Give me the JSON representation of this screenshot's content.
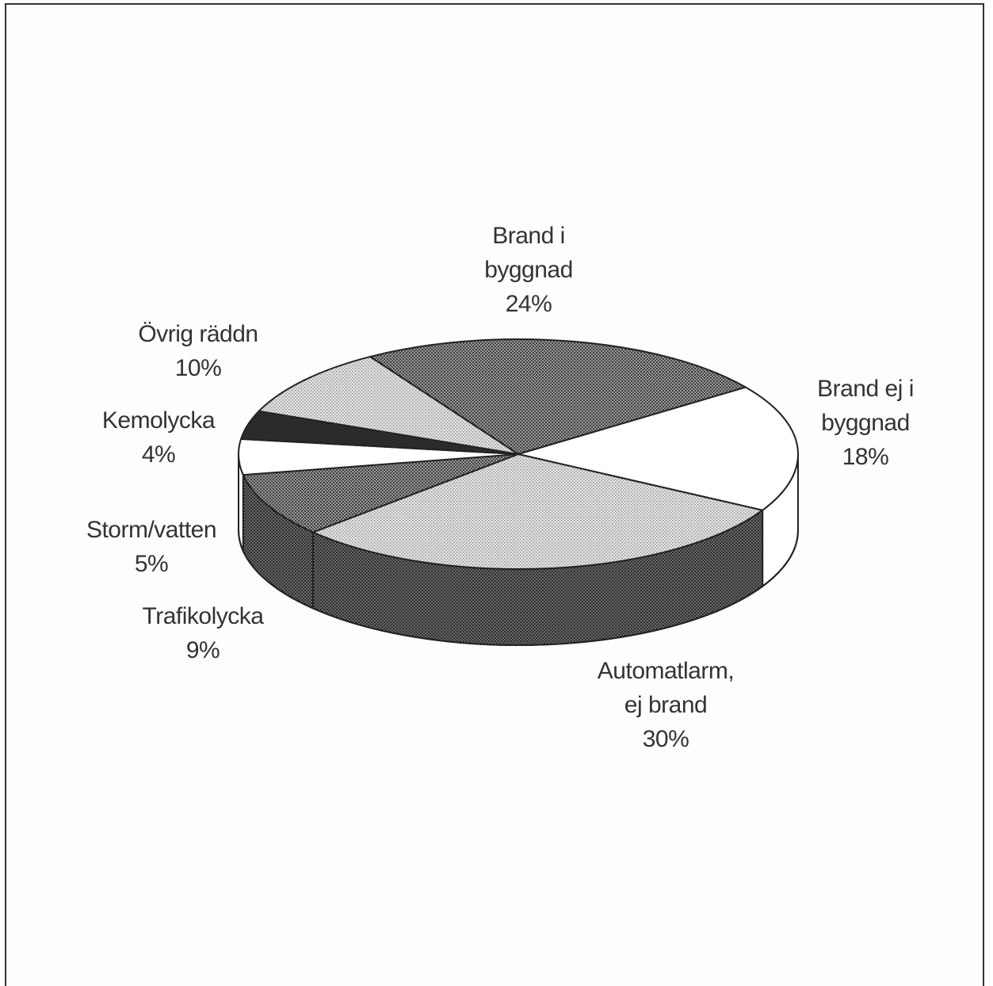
{
  "chart_data": {
    "type": "pie",
    "three_d": true,
    "title": "",
    "slices": [
      {
        "label": [
          "Brand i",
          "byggnad"
        ],
        "value": 24,
        "value_label": "24%",
        "pattern": "dark-dots",
        "color": "#6e6e6e"
      },
      {
        "label": [
          "Brand ej i",
          "byggnad"
        ],
        "value": 18,
        "value_label": "18%",
        "pattern": "none",
        "color": "#ffffff"
      },
      {
        "label": [
          "Automatlarm,",
          "ej brand"
        ],
        "value": 30,
        "value_label": "30%",
        "pattern": "light-dots",
        "color": "#c8c8c8"
      },
      {
        "label": [
          "Trafikolycka"
        ],
        "value": 9,
        "value_label": "9%",
        "pattern": "dark-dots",
        "color": "#5e5e5e"
      },
      {
        "label": [
          "Storm/vatten"
        ],
        "value": 5,
        "value_label": "5%",
        "pattern": "none",
        "color": "#ffffff"
      },
      {
        "label": [
          "Kemolycka"
        ],
        "value": 4,
        "value_label": "4%",
        "pattern": "solid-dark",
        "color": "#2e2e2e"
      },
      {
        "label": [
          "Övrig räddn"
        ],
        "value": 10,
        "value_label": "10%",
        "pattern": "light-dots",
        "color": "#d4d4d4"
      }
    ],
    "legend": "none"
  }
}
